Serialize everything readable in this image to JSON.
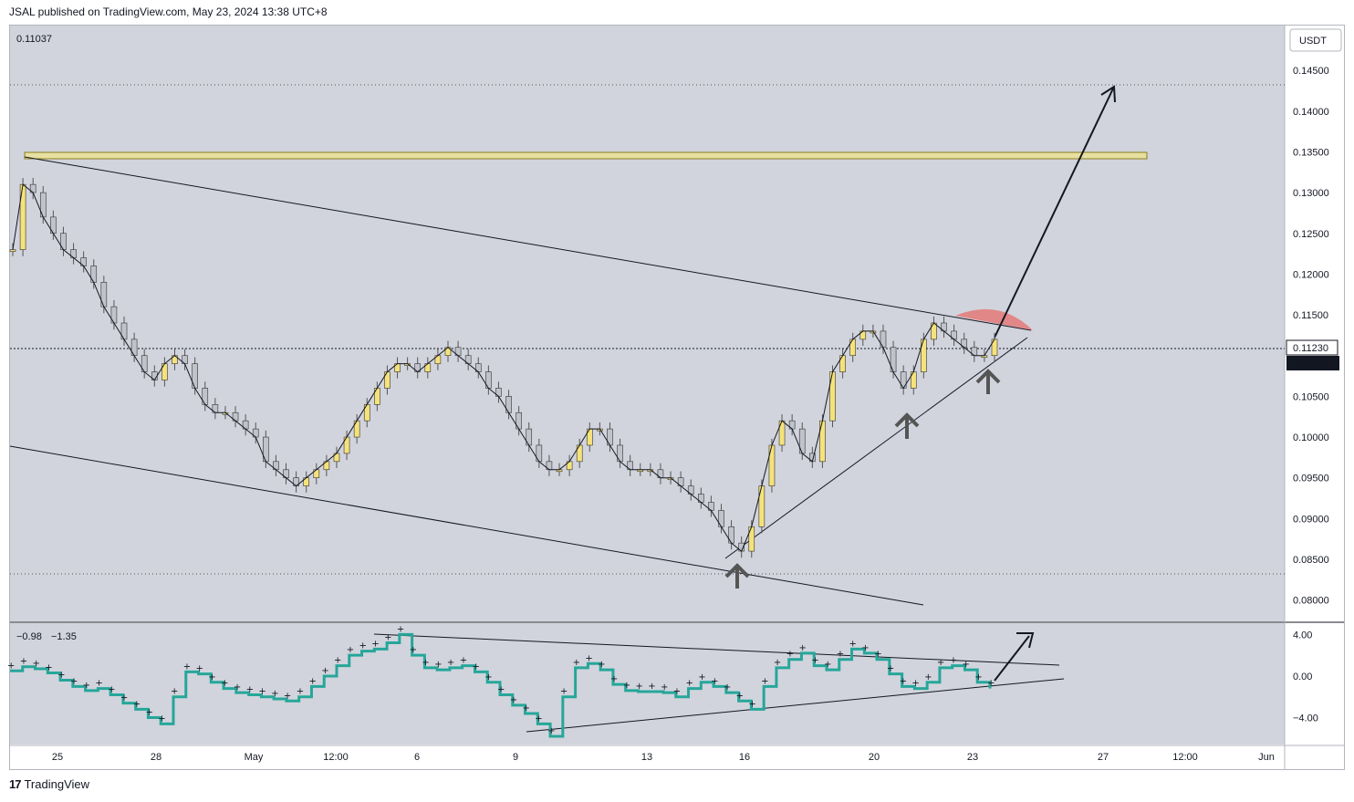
{
  "header": {
    "publish_text": "JSAL published on TradingView.com, May 23, 2024 13:38 UTC+8"
  },
  "footer": {
    "brand": "TradingView",
    "logo_glyph": "17"
  },
  "main_pane": {
    "top_left_value": "0.11037",
    "currency_button": "USDT",
    "price_axis_labels": [
      "0.14500",
      "0.14000",
      "0.13500",
      "0.13000",
      "0.12500",
      "0.12000",
      "0.11500",
      "0.10500",
      "0.10000",
      "0.09500",
      "0.09000",
      "0.08500",
      "0.08000"
    ],
    "last_price_label": "0.11230",
    "countdown_label": "02:21:25"
  },
  "sub_pane": {
    "value_1": "−0.98",
    "value_2": "−1.35",
    "axis_labels": [
      "4.00",
      "0.00",
      "−4.00"
    ]
  },
  "time_axis": {
    "labels": [
      "25",
      "28",
      "May",
      "12:00",
      "6",
      "9",
      "13",
      "16",
      "20",
      "23",
      "27",
      "12:00",
      "Jun"
    ]
  },
  "colors": {
    "pane_bg": "#d1d4dc",
    "bull": "#f5e27a",
    "bear": "#c0c3cb",
    "teal": "#26a69a",
    "red_zone": "#e57373",
    "band": "#e8e0a0"
  },
  "chart_data": [
    {
      "type": "line",
      "title": "",
      "series": [
        {
          "values": [
            0.123,
            0.131,
            0.13,
            0.127,
            0.125,
            0.123,
            0.122,
            0.121,
            0.119,
            0.116,
            0.114,
            0.112,
            0.11,
            0.108,
            0.107,
            0.109,
            0.11,
            0.109,
            0.106,
            0.104,
            0.103,
            0.103,
            0.102,
            0.101,
            0.1,
            0.097,
            0.096,
            0.095,
            0.094,
            0.095,
            0.096,
            0.097,
            0.098,
            0.1,
            0.102,
            0.104,
            0.106,
            0.108,
            0.109,
            0.109,
            0.108,
            0.109,
            0.11,
            0.111,
            0.11,
            0.109,
            0.108,
            0.106,
            0.105,
            0.103,
            0.101,
            0.099,
            0.097,
            0.096,
            0.096,
            0.097,
            0.099,
            0.101,
            0.101,
            0.099,
            0.097,
            0.096,
            0.096,
            0.096,
            0.095,
            0.095,
            0.094,
            0.093,
            0.092,
            0.091,
            0.089,
            0.087,
            0.086,
            0.089,
            0.094,
            0.099,
            0.102,
            0.101,
            0.098,
            0.097,
            0.102,
            0.108,
            0.11,
            0.112,
            0.113,
            0.113,
            0.111,
            0.108,
            0.106,
            0.108,
            0.112,
            0.114,
            0.113,
            0.112,
            0.111,
            0.11,
            0.11,
            0.112
          ]
        }
      ],
      "yticks": [
        0.145,
        0.14,
        0.135,
        0.13,
        0.125,
        0.12,
        0.115,
        0.105,
        0.1,
        0.095,
        0.09,
        0.085,
        0.08
      ],
      "ylim": [
        0.0775,
        0.1505
      ],
      "xticks": [
        "25",
        "28",
        "May",
        "12:00",
        "6",
        "9",
        "13",
        "16",
        "20",
        "23",
        "27",
        "12:00",
        "Jun"
      ]
    },
    {
      "type": "line",
      "title": "",
      "series": [
        {
          "values": [
            0.5,
            0.9,
            0.7,
            0.3,
            -0.4,
            -1.0,
            -1.4,
            -1.2,
            -1.8,
            -2.6,
            -3.2,
            -4.0,
            -4.6,
            -2.0,
            0.4,
            0.2,
            -0.6,
            -1.2,
            -1.6,
            -1.8,
            -2.0,
            -2.2,
            -2.4,
            -2.0,
            -1.0,
            0.0,
            1.0,
            2.0,
            2.4,
            2.6,
            3.2,
            4.0,
            2.0,
            0.8,
            0.6,
            0.8,
            1.0,
            0.4,
            -0.6,
            -1.8,
            -2.8,
            -3.6,
            -4.6,
            -5.8,
            -2.0,
            0.8,
            1.2,
            0.6,
            -0.8,
            -1.4,
            -1.5,
            -1.5,
            -1.6,
            -2.0,
            -1.2,
            -0.6,
            -1.0,
            -1.6,
            -2.4,
            -3.2,
            -1.0,
            0.8,
            1.6,
            2.2,
            1.0,
            0.6,
            1.6,
            2.6,
            2.2,
            1.6,
            0.2,
            -1.0,
            -1.2,
            -0.6,
            0.8,
            1.0,
            0.6,
            -0.6,
            -1.2
          ],
          "color": "#26a69a"
        }
      ],
      "yticks": [
        4.0,
        0.0,
        -4.0
      ],
      "ylim": [
        -6.5,
        5.0
      ]
    }
  ]
}
